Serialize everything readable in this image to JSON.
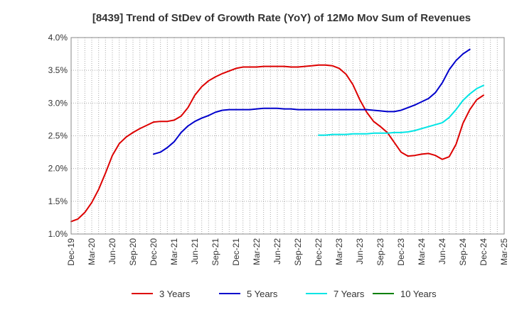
{
  "chart_data": {
    "type": "line",
    "title": "[8439]  Trend of StDev of Growth Rate (YoY) of 12Mo Mov Sum of Revenues",
    "xlabel": "",
    "ylabel": "",
    "ylim": [
      1.0,
      4.0
    ],
    "y_ticks": [
      "1.0%",
      "1.5%",
      "2.0%",
      "2.5%",
      "3.0%",
      "3.5%",
      "4.0%"
    ],
    "y_tick_values": [
      1.0,
      1.5,
      2.0,
      2.5,
      3.0,
      3.5,
      4.0
    ],
    "x_ticks": [
      "Dec-19",
      "Mar-20",
      "Jun-20",
      "Sep-20",
      "Dec-20",
      "Mar-21",
      "Jun-21",
      "Sep-21",
      "Dec-21",
      "Mar-22",
      "Jun-22",
      "Sep-22",
      "Dec-22",
      "Mar-23",
      "Jun-23",
      "Sep-23",
      "Dec-23",
      "Mar-24",
      "Jun-24",
      "Sep-24",
      "Dec-24",
      "Mar-25"
    ],
    "x_range_months": [
      0,
      63
    ],
    "grid": true,
    "legend_position": "bottom",
    "series": [
      {
        "name": "3 Years",
        "color": "#dd0000",
        "start_month": 0,
        "values": [
          1.19,
          1.23,
          1.33,
          1.48,
          1.68,
          1.93,
          2.2,
          2.38,
          2.48,
          2.55,
          2.61,
          2.66,
          2.71,
          2.72,
          2.72,
          2.74,
          2.8,
          2.93,
          3.12,
          3.25,
          3.34,
          3.4,
          3.45,
          3.49,
          3.53,
          3.55,
          3.55,
          3.55,
          3.56,
          3.56,
          3.56,
          3.56,
          3.55,
          3.55,
          3.56,
          3.57,
          3.58,
          3.58,
          3.57,
          3.53,
          3.44,
          3.28,
          3.05,
          2.86,
          2.72,
          2.64,
          2.55,
          2.4,
          2.25,
          2.19,
          2.2,
          2.22,
          2.23,
          2.2,
          2.14,
          2.18,
          2.37,
          2.69,
          2.9,
          3.05,
          3.12
        ]
      },
      {
        "name": "5 Years",
        "color": "#0000cc",
        "start_month": 12,
        "values": [
          2.22,
          2.25,
          2.32,
          2.41,
          2.55,
          2.65,
          2.72,
          2.77,
          2.81,
          2.86,
          2.89,
          2.9,
          2.9,
          2.9,
          2.9,
          2.91,
          2.92,
          2.92,
          2.92,
          2.91,
          2.91,
          2.9,
          2.9,
          2.9,
          2.9,
          2.9,
          2.9,
          2.9,
          2.9,
          2.9,
          2.9,
          2.9,
          2.89,
          2.88,
          2.87,
          2.87,
          2.89,
          2.93,
          2.97,
          3.02,
          3.07,
          3.16,
          3.31,
          3.51,
          3.65,
          3.75,
          3.82
        ]
      },
      {
        "name": "7 Years",
        "color": "#00e5e5",
        "start_month": 36,
        "values": [
          2.51,
          2.51,
          2.52,
          2.52,
          2.52,
          2.53,
          2.53,
          2.53,
          2.54,
          2.54,
          2.54,
          2.55,
          2.55,
          2.56,
          2.58,
          2.61,
          2.64,
          2.67,
          2.7,
          2.78,
          2.9,
          3.04,
          3.14,
          3.22,
          3.27
        ]
      },
      {
        "name": "10 Years",
        "color": "#008000",
        "start_month": 36,
        "values": []
      }
    ]
  }
}
